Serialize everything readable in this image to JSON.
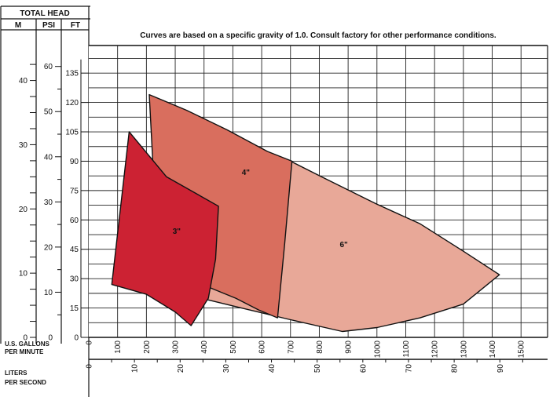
{
  "chart_data": {
    "type": "area",
    "title": "",
    "note": "Curves are based on a specific gravity of 1.0. Consult factory for other performance conditions.",
    "axes": {
      "head_header": "TOTAL HEAD",
      "head_units": [
        "M",
        "PSI",
        "FT"
      ],
      "x_label_lines": [
        "U.S. GALLONS",
        "PER MINUTE"
      ],
      "x2_label_lines": [
        "LITERS",
        "PER SECOND"
      ],
      "ft_ticks": [
        0,
        15,
        30,
        45,
        60,
        75,
        90,
        105,
        120,
        135
      ],
      "psi_ticks": [
        0,
        10,
        20,
        30,
        40,
        50,
        60
      ],
      "m_ticks": [
        0,
        10,
        20,
        30,
        40
      ],
      "gpm_ticks": [
        0,
        100,
        200,
        300,
        400,
        500,
        600,
        700,
        800,
        900,
        1000,
        1100,
        1200,
        1300,
        1400,
        1500
      ],
      "lps_ticks": [
        0,
        10,
        20,
        30,
        40,
        50,
        60,
        70,
        80,
        90
      ],
      "xlim": [
        0,
        1600
      ],
      "ylim": [
        0,
        150
      ],
      "grid": true
    },
    "series": [
      {
        "name": "6\"",
        "color": "#e8a898",
        "label_at": [
          885,
          46
        ],
        "points": [
          [
            700,
            90
          ],
          [
            808,
            82
          ],
          [
            1000,
            68
          ],
          [
            1150,
            58
          ],
          [
            1300,
            44
          ],
          [
            1425,
            32
          ],
          [
            1300,
            17
          ],
          [
            1150,
            10
          ],
          [
            1000,
            5
          ],
          [
            880,
            3
          ],
          [
            700,
            9
          ],
          [
            530,
            15
          ],
          [
            390,
            20
          ],
          [
            420,
            27
          ]
        ]
      },
      {
        "name": "4\"",
        "color": "#d96e5e",
        "label_at": [
          545,
          83
        ],
        "points": [
          [
            210,
            124
          ],
          [
            340,
            116
          ],
          [
            480,
            106
          ],
          [
            620,
            95
          ],
          [
            705,
            90
          ],
          [
            680,
            48
          ],
          [
            655,
            10
          ],
          [
            590,
            14
          ],
          [
            510,
            20
          ],
          [
            410,
            26
          ],
          [
            390,
            32
          ],
          [
            240,
            40
          ],
          [
            210,
            124
          ]
        ]
      },
      {
        "name": "3\"",
        "color": "#cc2233",
        "label_at": [
          305,
          53
        ],
        "points": [
          [
            140,
            105
          ],
          [
            270,
            82
          ],
          [
            450,
            67
          ],
          [
            440,
            40
          ],
          [
            415,
            20
          ],
          [
            355,
            6
          ],
          [
            300,
            13
          ],
          [
            200,
            22
          ],
          [
            80,
            27
          ],
          [
            140,
            105
          ]
        ]
      }
    ]
  }
}
